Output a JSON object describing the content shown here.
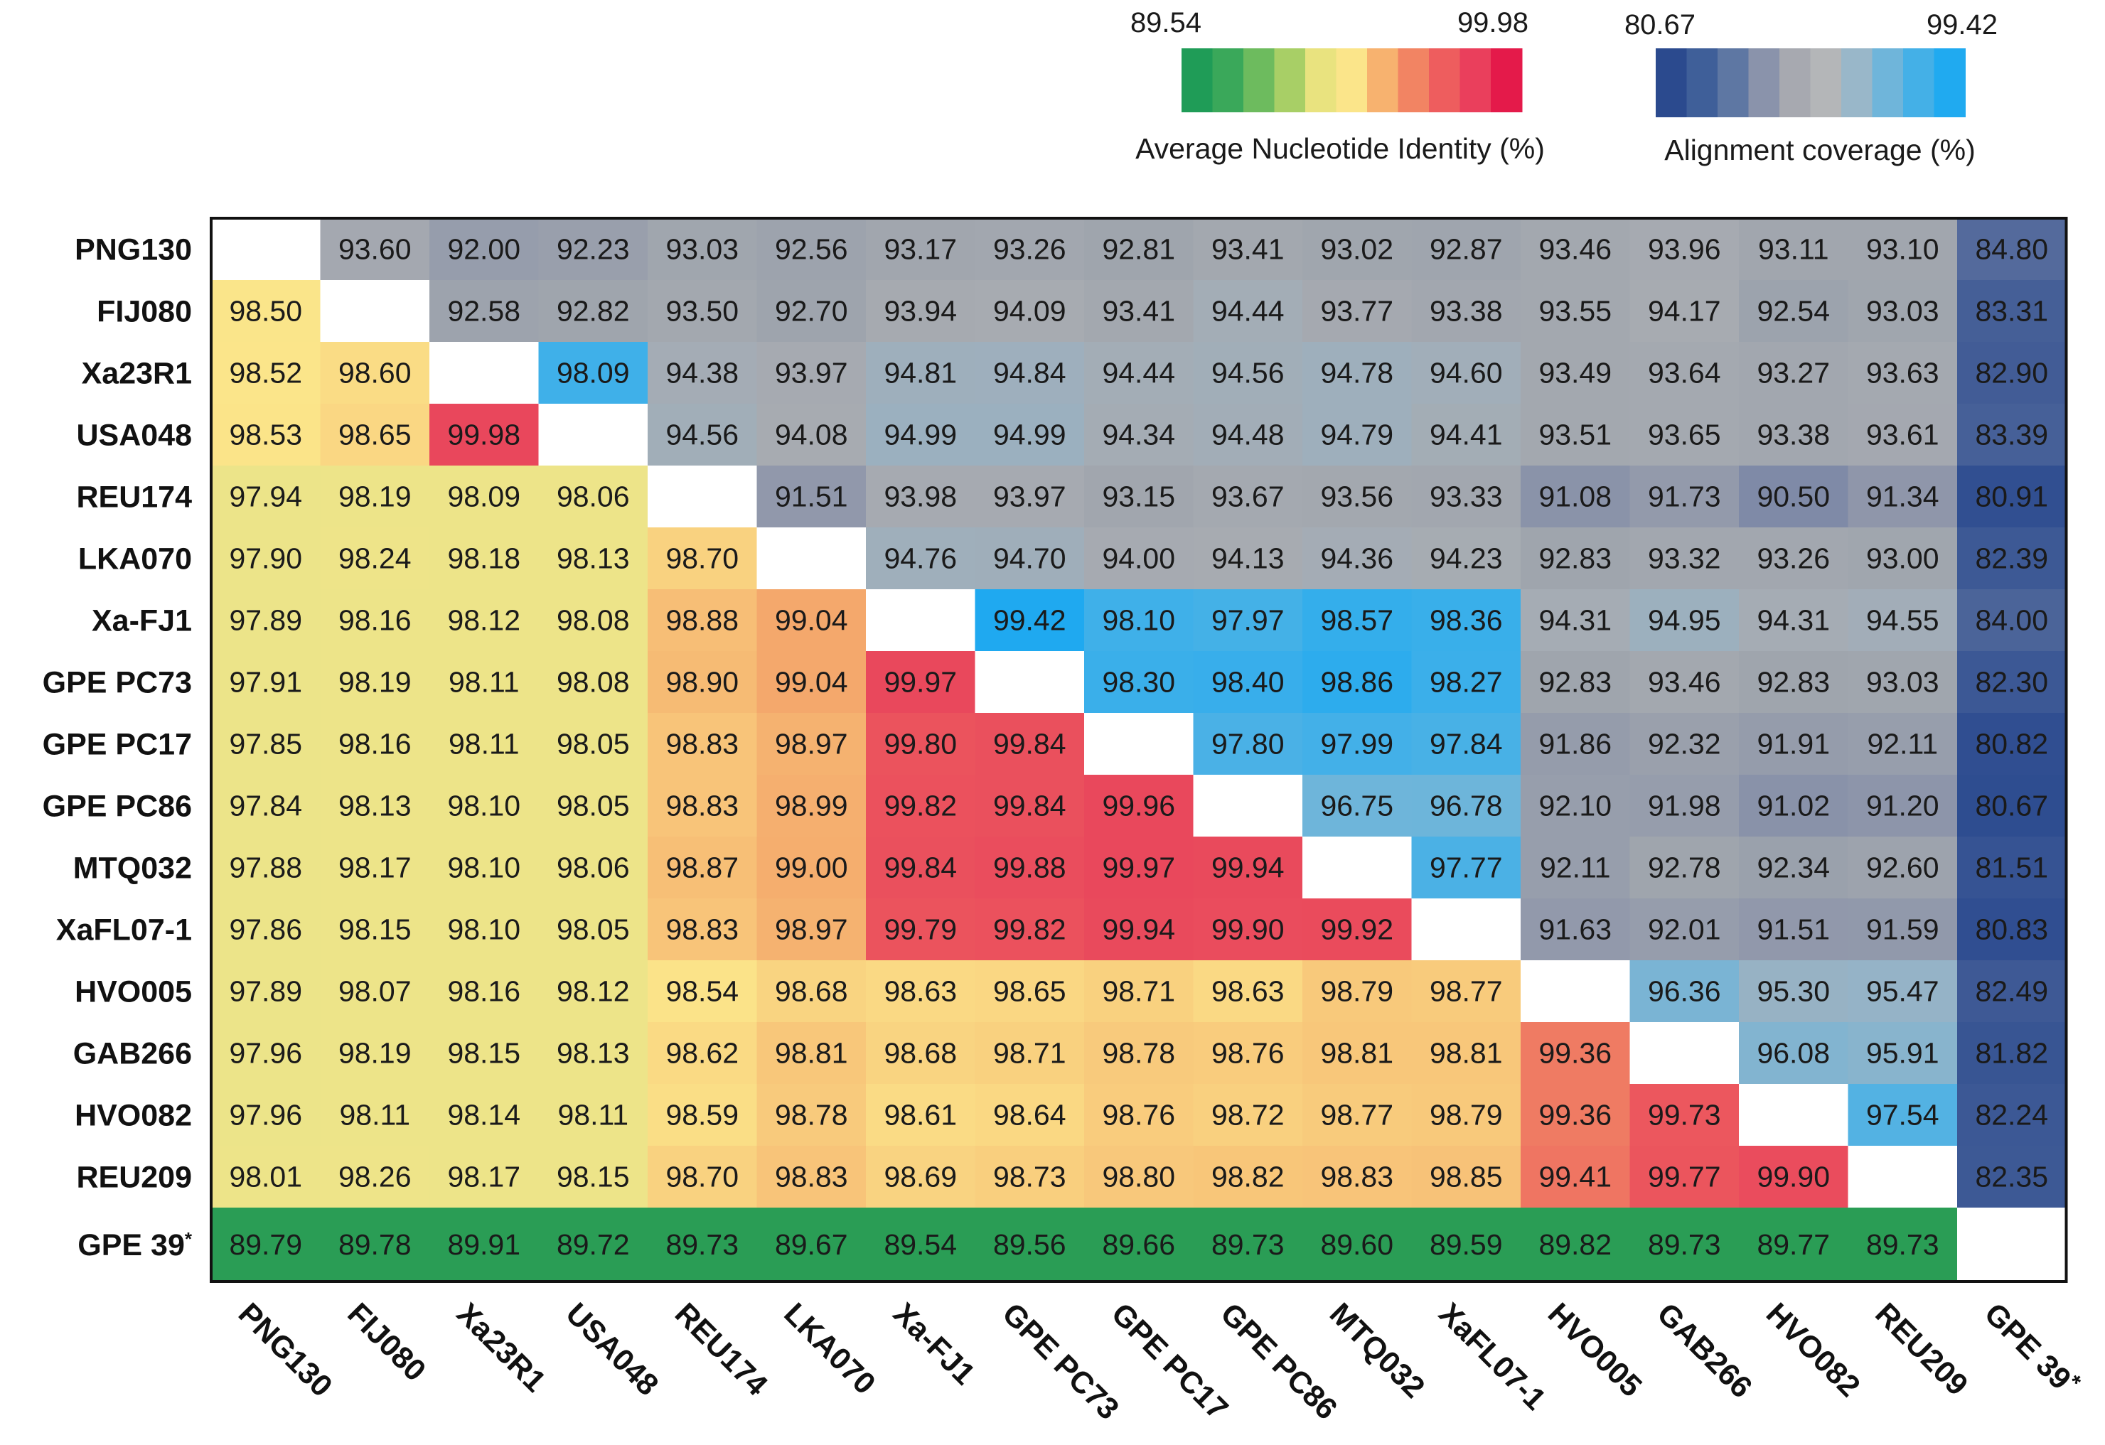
{
  "chart_data": {
    "type": "heatmap",
    "title": "",
    "strains": [
      "PNG130",
      "FIJ080",
      "Xa23R1",
      "USA048",
      "REU174",
      "LKA070",
      "Xa-FJ1",
      "GPE PC73",
      "GPE PC17",
      "GPE PC86",
      "MTQ032",
      "XaFL07-1",
      "HVO005",
      "GAB266",
      "HVO082",
      "REU209",
      "GPE 39"
    ],
    "strain_suffix": [
      "",
      "",
      "",
      "",
      "",
      "",
      "",
      "",
      "",
      "",
      "",
      "",
      "",
      "",
      "",
      "",
      "*"
    ],
    "highlight_strain": "Xa-FJ1",
    "highlight_color": "#e8241c",
    "lower_triangle_metric": "Average Nucleotide Identity (%)",
    "upper_triangle_metric": "Alignment coverage (%)",
    "matrix": [
      [
        null,
        "93.60",
        "92.00",
        "92.23",
        "93.03",
        "92.56",
        "93.17",
        "93.26",
        "92.81",
        "93.41",
        "93.02",
        "92.87",
        "93.46",
        "93.96",
        "93.11",
        "93.10",
        "84.80"
      ],
      [
        "98.50",
        null,
        "92.58",
        "92.82",
        "93.50",
        "92.70",
        "93.94",
        "94.09",
        "93.41",
        "94.44",
        "93.77",
        "93.38",
        "93.55",
        "94.17",
        "92.54",
        "93.03",
        "83.31"
      ],
      [
        "98.52",
        "98.60",
        null,
        "98.09",
        "94.38",
        "93.97",
        "94.81",
        "94.84",
        "94.44",
        "94.56",
        "94.78",
        "94.60",
        "93.49",
        "93.64",
        "93.27",
        "93.63",
        "82.90"
      ],
      [
        "98.53",
        "98.65",
        "99.98",
        null,
        "94.56",
        "94.08",
        "94.99",
        "94.99",
        "94.34",
        "94.48",
        "94.79",
        "94.41",
        "93.51",
        "93.65",
        "93.38",
        "93.61",
        "83.39"
      ],
      [
        "97.94",
        "98.19",
        "98.09",
        "98.06",
        null,
        "91.51",
        "93.98",
        "93.97",
        "93.15",
        "93.67",
        "93.56",
        "93.33",
        "91.08",
        "91.73",
        "90.50",
        "91.34",
        "80.91"
      ],
      [
        "97.90",
        "98.24",
        "98.18",
        "98.13",
        "98.70",
        null,
        "94.76",
        "94.70",
        "94.00",
        "94.13",
        "94.36",
        "94.23",
        "92.83",
        "93.32",
        "93.26",
        "93.00",
        "82.39"
      ],
      [
        "97.89",
        "98.16",
        "98.12",
        "98.08",
        "98.88",
        "99.04",
        null,
        "99.42",
        "98.10",
        "97.97",
        "98.57",
        "98.36",
        "94.31",
        "94.95",
        "94.31",
        "94.55",
        "84.00"
      ],
      [
        "97.91",
        "98.19",
        "98.11",
        "98.08",
        "98.90",
        "99.04",
        "99.97",
        null,
        "98.30",
        "98.40",
        "98.86",
        "98.27",
        "92.83",
        "93.46",
        "92.83",
        "93.03",
        "82.30"
      ],
      [
        "97.85",
        "98.16",
        "98.11",
        "98.05",
        "98.83",
        "98.97",
        "99.80",
        "99.84",
        null,
        "97.80",
        "97.99",
        "97.84",
        "91.86",
        "92.32",
        "91.91",
        "92.11",
        "80.82"
      ],
      [
        "97.84",
        "98.13",
        "98.10",
        "98.05",
        "98.83",
        "98.99",
        "99.82",
        "99.84",
        "99.96",
        null,
        "96.75",
        "96.78",
        "92.10",
        "91.98",
        "91.02",
        "91.20",
        "80.67"
      ],
      [
        "97.88",
        "98.17",
        "98.10",
        "98.06",
        "98.87",
        "99.00",
        "99.84",
        "99.88",
        "99.97",
        "99.94",
        null,
        "97.77",
        "92.11",
        "92.78",
        "92.34",
        "92.60",
        "81.51"
      ],
      [
        "97.86",
        "98.15",
        "98.10",
        "98.05",
        "98.83",
        "98.97",
        "99.79",
        "99.82",
        "99.94",
        "99.90",
        "99.92",
        null,
        "91.63",
        "92.01",
        "91.51",
        "91.59",
        "80.83"
      ],
      [
        "97.89",
        "98.07",
        "98.16",
        "98.12",
        "98.54",
        "98.68",
        "98.63",
        "98.65",
        "98.71",
        "98.63",
        "98.79",
        "98.77",
        null,
        "96.36",
        "95.30",
        "95.47",
        "82.49"
      ],
      [
        "97.96",
        "98.19",
        "98.15",
        "98.13",
        "98.62",
        "98.81",
        "98.68",
        "98.71",
        "98.78",
        "98.76",
        "98.81",
        "98.81",
        "99.36",
        null,
        "96.08",
        "95.91",
        "81.82"
      ],
      [
        "97.96",
        "98.11",
        "98.14",
        "98.11",
        "98.59",
        "98.78",
        "98.61",
        "98.64",
        "98.76",
        "98.72",
        "98.77",
        "98.79",
        "99.36",
        "99.73",
        null,
        "97.54",
        "82.24"
      ],
      [
        "98.01",
        "98.26",
        "98.17",
        "98.15",
        "98.70",
        "98.83",
        "98.69",
        "98.73",
        "98.80",
        "98.82",
        "98.83",
        "98.85",
        "99.41",
        "99.77",
        "99.90",
        null,
        "82.35"
      ],
      [
        "89.79",
        "89.78",
        "89.91",
        "89.72",
        "89.73",
        "89.67",
        "89.54",
        "89.56",
        "89.66",
        "89.73",
        "89.60",
        "89.59",
        "89.82",
        "89.73",
        "89.77",
        "89.73",
        null
      ]
    ],
    "ani_scale": {
      "title": "Average Nucleotide Identity (%)",
      "min": "89.54",
      "max": "99.98",
      "colors": [
        "#1f9c57",
        "#3aa85a",
        "#6dbb5e",
        "#a8cf66",
        "#e9e37f",
        "#fbe58a",
        "#f7b26f",
        "#f28463",
        "#ee5d5e",
        "#ea3f5c",
        "#e41a4a"
      ]
    },
    "coverage_scale": {
      "title": "Alignment coverage (%)",
      "min": "80.67",
      "max": "99.42",
      "colors": [
        "#2b4a8e",
        "#3f5f99",
        "#5e77a3",
        "#8a93ab",
        "#a7a9b0",
        "#b4b6b8",
        "#99b7c9",
        "#6fb5da",
        "#44b0e7",
        "#20aaf0"
      ]
    }
  }
}
